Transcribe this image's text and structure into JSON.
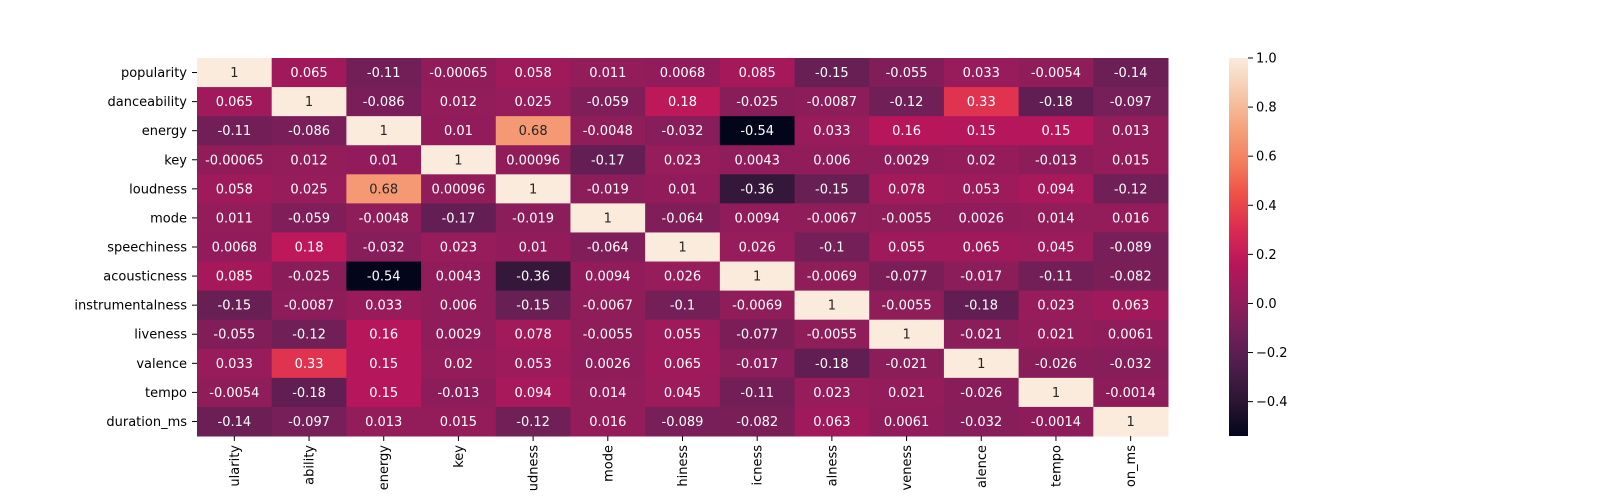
{
  "chart_data": {
    "type": "heatmap",
    "title": "",
    "xlabel": "",
    "ylabel": "",
    "row_labels": [
      "popularity",
      "danceability",
      "energy",
      "key",
      "loudness",
      "mode",
      "speechiness",
      "acousticness",
      "instrumentalness",
      "liveness",
      "valence",
      "tempo",
      "duration_ms"
    ],
    "col_labels": [
      "ularity",
      "ability",
      "energy",
      "key",
      "udness",
      "mode",
      "hiness",
      "icness",
      "alness",
      "veness",
      "alence",
      "tempo",
      "on_ms"
    ],
    "values": [
      [
        1,
        0.065,
        -0.11,
        -0.00065,
        0.058,
        0.011,
        0.0068,
        0.085,
        -0.15,
        -0.055,
        0.033,
        -0.0054,
        -0.14
      ],
      [
        0.065,
        1,
        -0.086,
        0.012,
        0.025,
        -0.059,
        0.18,
        -0.025,
        -0.0087,
        -0.12,
        0.33,
        -0.18,
        -0.097
      ],
      [
        -0.11,
        -0.086,
        1,
        0.01,
        0.68,
        -0.0048,
        -0.032,
        -0.54,
        0.033,
        0.16,
        0.15,
        0.15,
        0.013
      ],
      [
        -0.00065,
        0.012,
        0.01,
        1,
        0.00096,
        -0.17,
        0.023,
        0.0043,
        0.006,
        0.0029,
        0.02,
        -0.013,
        0.015
      ],
      [
        0.058,
        0.025,
        0.68,
        0.00096,
        1,
        -0.019,
        0.01,
        -0.36,
        -0.15,
        0.078,
        0.053,
        0.094,
        -0.12
      ],
      [
        0.011,
        -0.059,
        -0.0048,
        -0.17,
        -0.019,
        1,
        -0.064,
        0.0094,
        -0.0067,
        -0.0055,
        0.0026,
        0.014,
        0.016
      ],
      [
        0.0068,
        0.18,
        -0.032,
        0.023,
        0.01,
        -0.064,
        1,
        0.026,
        -0.1,
        0.055,
        0.065,
        0.045,
        -0.089
      ],
      [
        0.085,
        -0.025,
        -0.54,
        0.0043,
        -0.36,
        0.0094,
        0.026,
        1,
        -0.0069,
        -0.077,
        -0.017,
        -0.11,
        -0.082
      ],
      [
        -0.15,
        -0.0087,
        0.033,
        0.006,
        -0.15,
        -0.0067,
        -0.1,
        -0.0069,
        1,
        -0.0055,
        -0.18,
        0.023,
        0.063
      ],
      [
        -0.055,
        -0.12,
        0.16,
        0.0029,
        0.078,
        -0.0055,
        0.055,
        -0.077,
        -0.0055,
        1,
        -0.021,
        0.021,
        0.0061
      ],
      [
        0.033,
        0.33,
        0.15,
        0.02,
        0.053,
        0.0026,
        0.065,
        -0.017,
        -0.18,
        -0.021,
        1,
        -0.026,
        -0.032
      ],
      [
        -0.0054,
        -0.18,
        0.15,
        -0.013,
        0.094,
        0.014,
        0.045,
        -0.11,
        0.023,
        0.021,
        -0.026,
        1,
        -0.0014
      ],
      [
        -0.14,
        -0.097,
        0.013,
        0.015,
        -0.12,
        0.016,
        -0.089,
        -0.082,
        0.063,
        0.0061,
        -0.032,
        -0.0014,
        1
      ]
    ],
    "colorbar": {
      "range": [
        -0.54,
        1.0
      ],
      "ticks": [
        -0.4,
        -0.2,
        0.0,
        0.2,
        0.4,
        0.6,
        0.8,
        1.0
      ],
      "tick_labels": [
        "−0.4",
        "−0.2",
        "0.0",
        "0.2",
        "0.4",
        "0.6",
        "0.8",
        "1.0"
      ],
      "colormap": "rocket",
      "colors": [
        "#03051a",
        "#2b1533",
        "#4c1d4b",
        "#701f57",
        "#951c5b",
        "#b8165b",
        "#db2b52",
        "#ed5046",
        "#f47e5e",
        "#f5a47e",
        "#f6c9ac",
        "#faebdd"
      ]
    },
    "grid": false,
    "legend": "colorbar-right"
  }
}
